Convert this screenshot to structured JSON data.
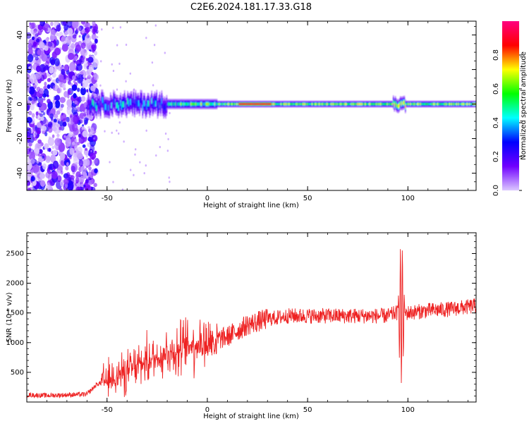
{
  "page": {
    "title": "C2E6.2024.181.17.33.G18"
  },
  "chart_data": [
    {
      "type": "heatmap",
      "title": "C2E6.2024.181.17.33.G18",
      "xlabel": "Height of straight line (km)",
      "ylabel": "Frequency (Hz)",
      "xlim": [
        -90,
        134
      ],
      "ylim": [
        -50,
        48
      ],
      "xticks": [
        -50,
        0,
        50,
        100
      ],
      "yticks": [
        -40,
        -20,
        0,
        20,
        40
      ],
      "colorbar": {
        "label": "Normalized spectral amplitude",
        "range": [
          0,
          1
        ],
        "ticks": [
          0.0,
          0.2,
          0.4,
          0.6,
          0.8
        ],
        "colormap": [
          "#dcc8ff",
          "#7000ff",
          "#0000ff",
          "#00ffff",
          "#00ff00",
          "#ffff00",
          "#ff0000",
          "#ff0080"
        ]
      },
      "features": {
        "noise_region_x": [
          -90,
          -57
        ],
        "signal_band_freq": [
          -2,
          2
        ],
        "signal_start_x": -60
      }
    },
    {
      "type": "line",
      "xlabel": "Height of straight line (km)",
      "ylabel": "SNR (10 * v/v)",
      "xlim": [
        -90,
        134
      ],
      "ylim": [
        0,
        2850
      ],
      "xticks": [
        -50,
        0,
        50,
        100
      ],
      "yticks": [
        500,
        1000,
        1500,
        2000,
        2500
      ],
      "line_color": "#ee2222",
      "series": [
        {
          "x": [
            -90,
            -80,
            -70,
            -60,
            -55,
            -50,
            -45,
            -40,
            -35,
            -30,
            -25,
            -20,
            -15,
            -10,
            -5,
            0,
            5,
            10,
            15,
            20,
            25,
            30,
            35,
            40,
            50,
            60,
            70,
            80,
            90,
            94,
            96,
            97,
            98,
            100,
            105,
            110,
            120,
            130,
            134
          ],
          "y": [
            120,
            110,
            120,
            130,
            300,
            350,
            450,
            500,
            600,
            700,
            750,
            850,
            850,
            950,
            1000,
            1000,
            1050,
            1100,
            1200,
            1300,
            1350,
            1400,
            1420,
            1450,
            1450,
            1450,
            1450,
            1450,
            1450,
            1500,
            1500,
            1500,
            1500,
            1500,
            1520,
            1540,
            1560,
            1600,
            1620
          ]
        }
      ]
    }
  ]
}
